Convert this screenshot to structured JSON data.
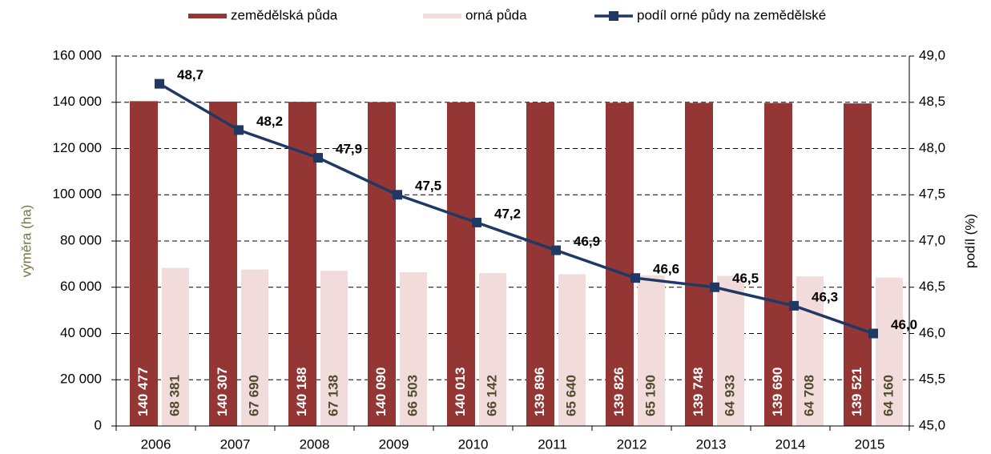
{
  "chart_data": {
    "type": "bar",
    "categories": [
      "2006",
      "2007",
      "2008",
      "2009",
      "2010",
      "2011",
      "2012",
      "2013",
      "2014",
      "2015"
    ],
    "series": [
      {
        "name": "zemědělská půda",
        "color": "#943634",
        "values": [
          140477,
          140307,
          140188,
          140090,
          140013,
          139896,
          139826,
          139748,
          139690,
          139521
        ],
        "value_labels": [
          "140 477",
          "140 307",
          "140 188",
          "140 090",
          "140 013",
          "139 896",
          "139 826",
          "139 748",
          "139 690",
          "139 521"
        ]
      },
      {
        "name": "orná půda",
        "color": "#f2dcdb",
        "values": [
          68381,
          67690,
          67138,
          66503,
          66142,
          65640,
          65190,
          64933,
          64708,
          64160
        ],
        "value_labels": [
          "68 381",
          "67 690",
          "67 138",
          "66 503",
          "66 142",
          "65 640",
          "65 190",
          "64 933",
          "64 708",
          "64 160"
        ]
      },
      {
        "name": "podíl orné půdy na zemědělské",
        "color": "#1f3864",
        "type": "line",
        "axis": "y2",
        "values": [
          48.7,
          48.2,
          47.9,
          47.5,
          47.2,
          46.9,
          46.6,
          46.5,
          46.3,
          46.0
        ],
        "value_labels": [
          "48,7",
          "48,2",
          "47,9",
          "47,5",
          "47,2",
          "46,9",
          "46,6",
          "46,5",
          "46,3",
          "46,0"
        ]
      }
    ],
    "y_label": "výměra (ha)",
    "y2_label": "podíl  (%)",
    "ylim": [
      0,
      160000
    ],
    "yticks": [
      0,
      {
        "value": 20000,
        "label": "20 000"
      },
      {
        "value": 40000,
        "label": "40 000"
      },
      {
        "value": 60000,
        "label": "60 000"
      },
      {
        "value": 80000,
        "label": "80 000"
      },
      {
        "value": 100000,
        "label": "100 000"
      },
      {
        "value": 120000,
        "label": "120 000"
      },
      {
        "value": 140000,
        "label": "140 000"
      },
      {
        "value": 160000,
        "label": "160 000"
      }
    ],
    "y2lim": [
      45.0,
      49.0
    ],
    "y2ticks": [
      {
        "value": 45.0,
        "label": "45,0"
      },
      {
        "value": 45.5,
        "label": "45,5"
      },
      {
        "value": 46.0,
        "label": "46,0"
      },
      {
        "value": 46.5,
        "label": "46,5"
      },
      {
        "value": 47.0,
        "label": "47,0"
      },
      {
        "value": 47.5,
        "label": "47,5"
      },
      {
        "value": 48.0,
        "label": "48,0"
      },
      {
        "value": 48.5,
        "label": "48,5"
      },
      {
        "value": 49.0,
        "label": "49,0"
      }
    ],
    "grid": true,
    "legend": "top"
  }
}
